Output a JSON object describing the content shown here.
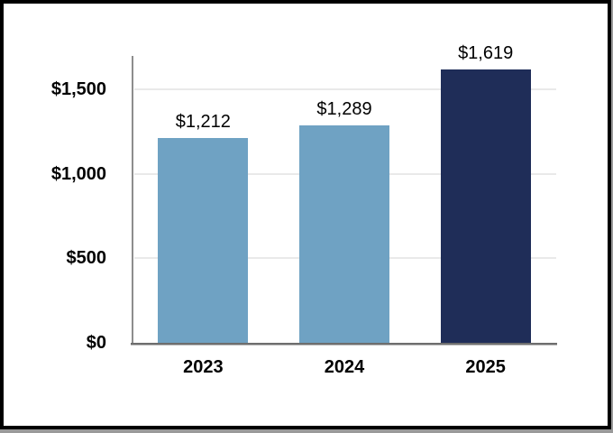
{
  "chart_data": {
    "type": "bar",
    "categories": [
      "2023",
      "2024",
      "2025"
    ],
    "values": [
      1212,
      1289,
      1619
    ],
    "data_labels": [
      "$1,212",
      "$1,289",
      "$1,619"
    ],
    "bar_colors": [
      "#6FA2C3",
      "#6FA2C3",
      "#1F2D58"
    ],
    "xlabel": "",
    "ylabel": "",
    "ylim": [
      0,
      1700
    ],
    "yticks": [
      0,
      500,
      1000,
      1500
    ],
    "ytick_labels": [
      "$0",
      "$500",
      "$1,000",
      "$1,500"
    ],
    "gridlines": [
      500,
      1000,
      1500
    ],
    "grid": true,
    "legend": "none"
  },
  "colors": {
    "bar_light_blue": "#6FA2C3",
    "bar_dark_navy": "#1F2D58",
    "gridline": "#E9E9E9",
    "y_axis_line": "#8D8D8D",
    "x_axis_line": "#6E6E6E",
    "label_text": "#000000",
    "frame_border": "#000000",
    "background": "#FFFFFF"
  }
}
